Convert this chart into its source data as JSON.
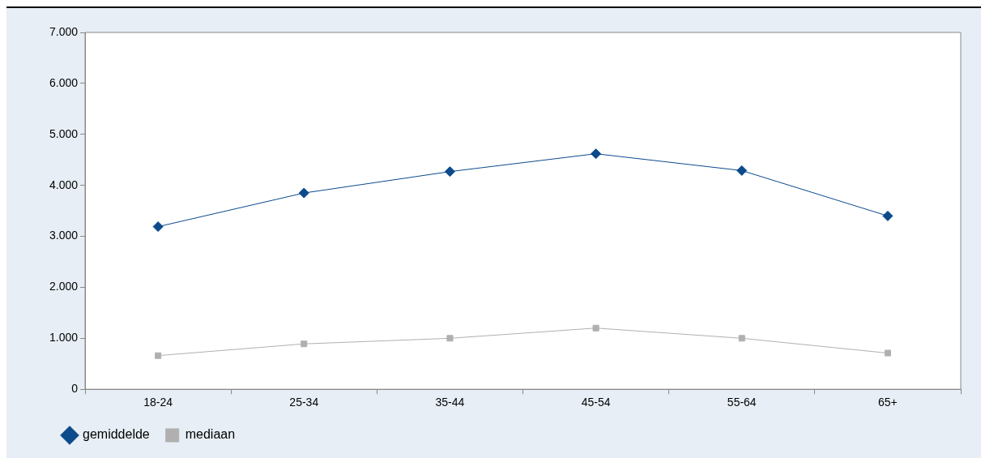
{
  "chart_data": {
    "type": "line",
    "categories": [
      "18-24",
      "25-34",
      "35-44",
      "45-54",
      "55-64",
      "65+"
    ],
    "series": [
      {
        "name": "gemiddelde",
        "color": "#0b4a8b",
        "marker": "diamond",
        "values": [
          3190,
          3850,
          4270,
          4620,
          4290,
          3400
        ]
      },
      {
        "name": "mediaan",
        "color": "#b0b0b0",
        "marker": "square",
        "values": [
          660,
          890,
          1000,
          1200,
          1000,
          710
        ]
      }
    ],
    "ylim": [
      0,
      7000
    ],
    "yticks": [
      0,
      {
        "value": 1000,
        "label": "1.000"
      },
      {
        "value": 2000,
        "label": "2.000"
      },
      {
        "value": 3000,
        "label": "3.000"
      },
      {
        "value": 4000,
        "label": "4.000"
      },
      {
        "value": 5000,
        "label": "5.000"
      },
      {
        "value": 6000,
        "label": "6.000"
      },
      {
        "value": 7000,
        "label": "7.000"
      }
    ],
    "grid": false,
    "legend": "bottom left",
    "line_style": "solid"
  }
}
